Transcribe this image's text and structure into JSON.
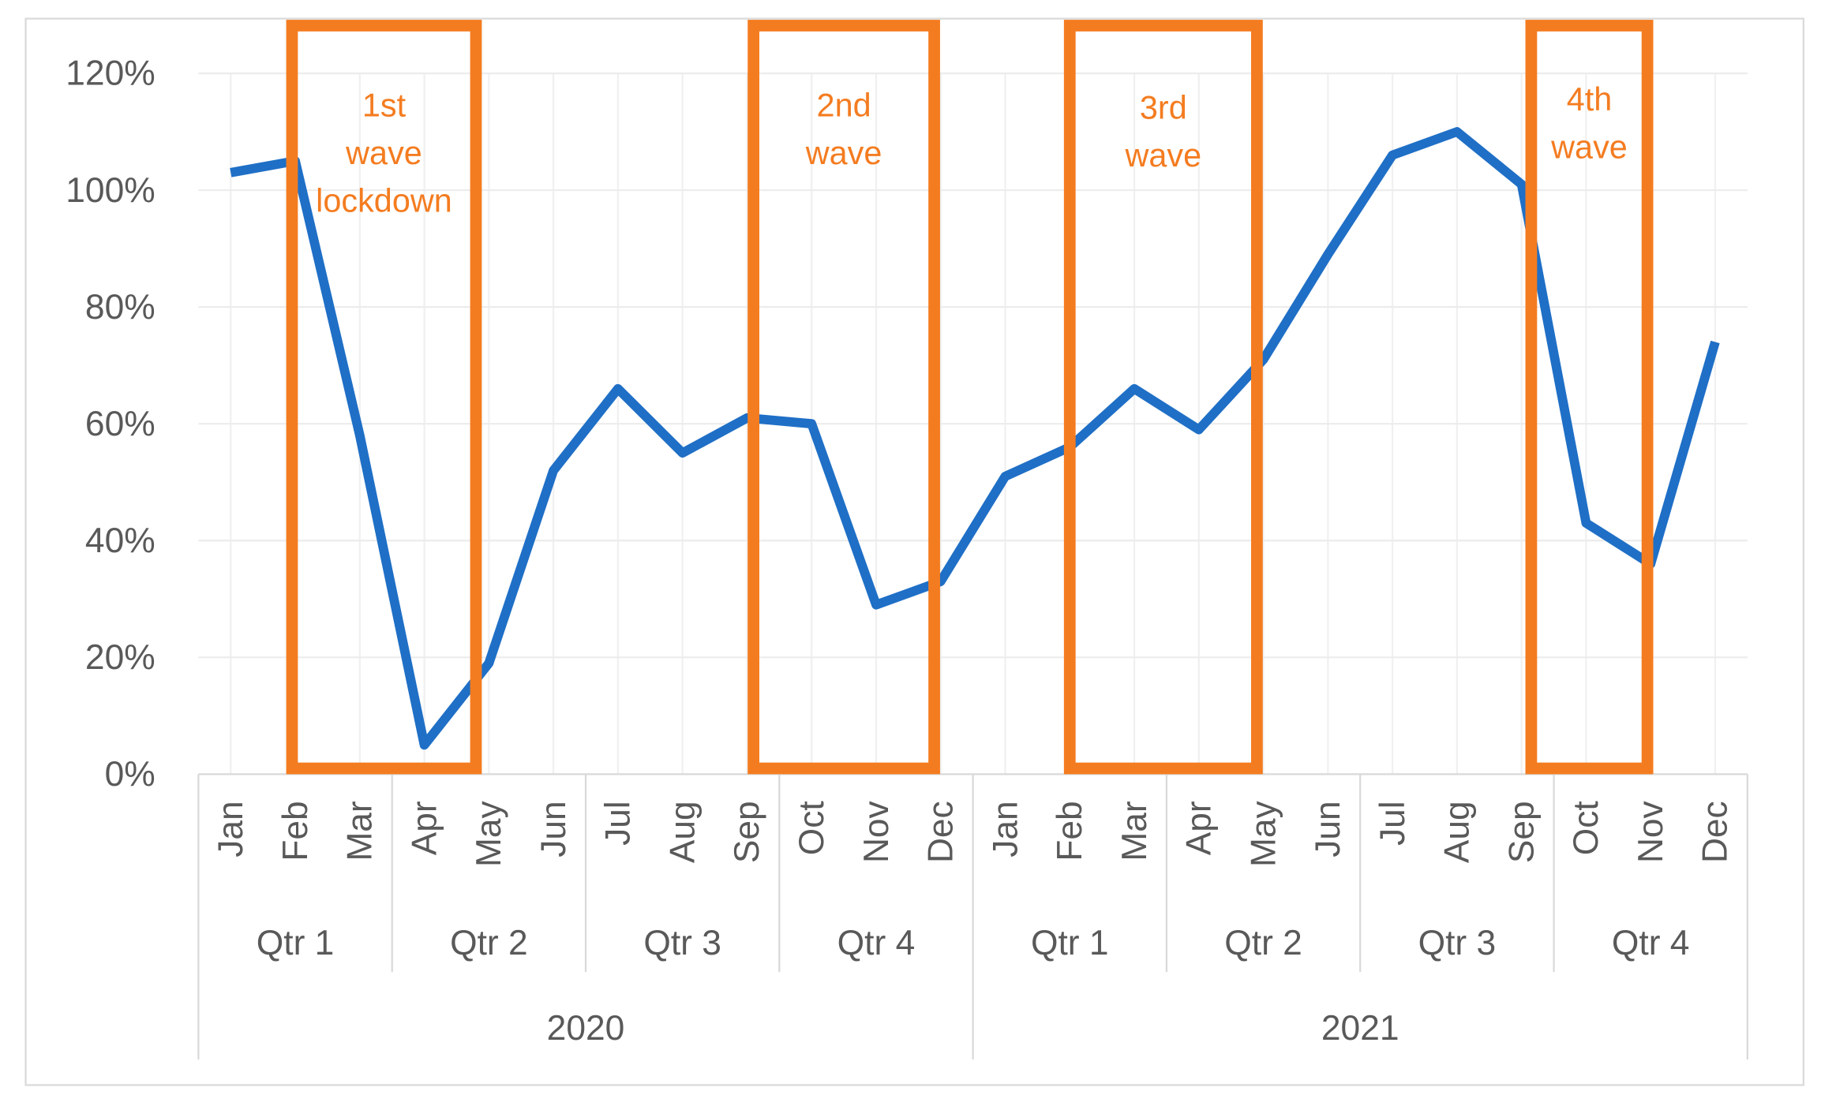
{
  "chart_data": {
    "type": "line",
    "categories": [
      "Jan",
      "Feb",
      "Mar",
      "Apr",
      "May",
      "Jun",
      "Jul",
      "Aug",
      "Sep",
      "Oct",
      "Nov",
      "Dec",
      "Jan",
      "Feb",
      "Mar",
      "Apr",
      "May",
      "Jun",
      "Jul",
      "Aug",
      "Sep",
      "Oct",
      "Nov",
      "Dec"
    ],
    "quarters": [
      "Qtr 1",
      "Qtr 2",
      "Qtr 3",
      "Qtr 4",
      "Qtr 1",
      "Qtr 2",
      "Qtr 3",
      "Qtr 4"
    ],
    "years": [
      "2020",
      "2021"
    ],
    "series": [
      {
        "color": "#1f6fc6",
        "values": [
          103,
          105,
          58,
          5,
          19,
          52,
          66,
          55,
          61,
          60,
          29,
          33,
          51,
          56,
          66,
          59,
          71,
          89,
          106,
          110,
          101,
          43,
          36,
          74
        ]
      }
    ],
    "ylim": [
      0,
      120
    ],
    "yticks": [
      {
        "value": 0,
        "label": "0%"
      },
      {
        "value": 20,
        "label": "20%"
      },
      {
        "value": 40,
        "label": "40%"
      },
      {
        "value": 60,
        "label": "60%"
      },
      {
        "value": 80,
        "label": "80%"
      },
      {
        "value": 100,
        "label": "100%"
      },
      {
        "value": 120,
        "label": "120%"
      }
    ],
    "grid": true,
    "annotation_color": "#f47c20",
    "annotations": [
      {
        "text": [
          "1st",
          "wave",
          "lockdown"
        ]
      },
      {
        "text": [
          "2nd",
          "wave"
        ]
      },
      {
        "text": [
          "3rd",
          "wave"
        ]
      },
      {
        "text": [
          "4th",
          "wave"
        ]
      }
    ]
  }
}
